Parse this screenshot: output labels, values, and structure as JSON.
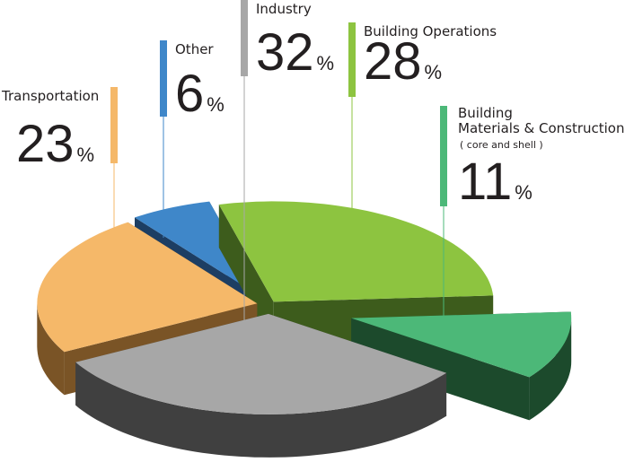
{
  "chart_data": {
    "type": "pie",
    "categories": [
      "Building Operations",
      "Building Materials & Construction",
      "Industry",
      "Transportation",
      "Other"
    ],
    "values": [
      28,
      11,
      32,
      23,
      6
    ],
    "value_labels": [
      "28%",
      "11%",
      "32%",
      "23%",
      "6%"
    ],
    "colors": [
      "#8dc440",
      "#4cb878",
      "#a7a7a7",
      "#f5b869",
      "#3f87c9"
    ],
    "side_colors": [
      "#3d5c1c",
      "#1c4a2c",
      "#404040",
      "#7a5426",
      "#1d3e63"
    ],
    "annotation": "( core and shell )"
  }
}
